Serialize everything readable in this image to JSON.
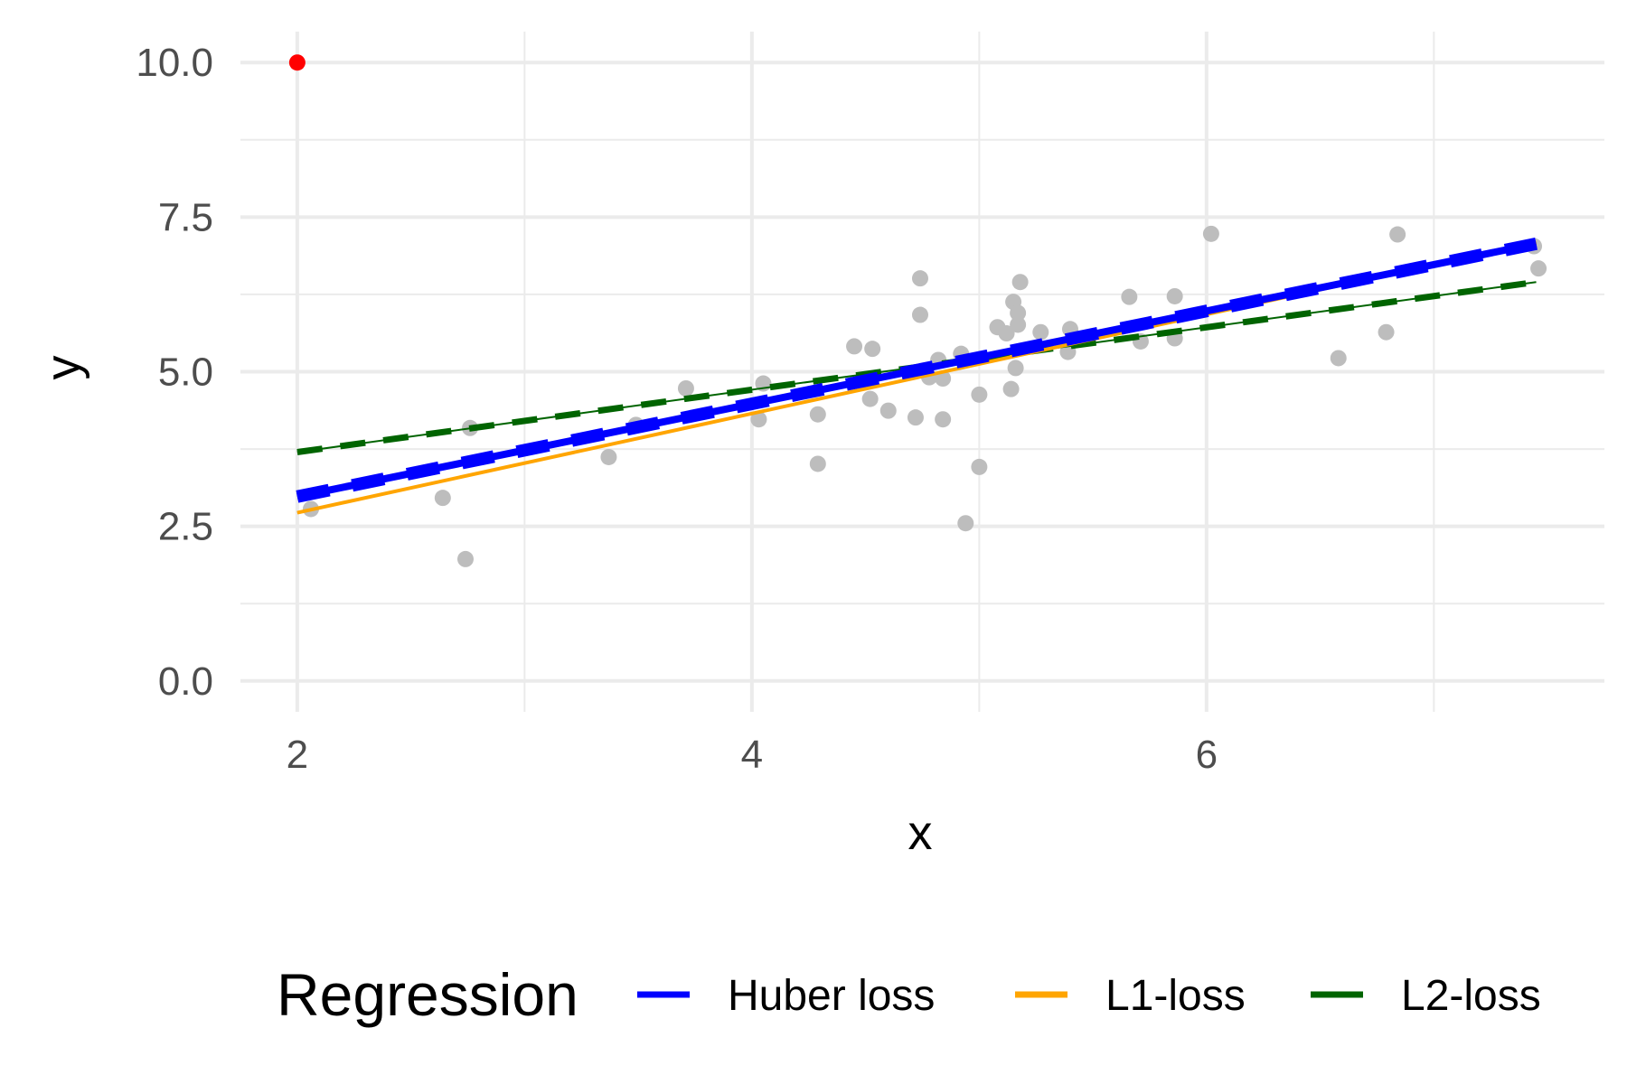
{
  "chart_data": {
    "type": "scatter",
    "title": "",
    "xlabel": "x",
    "ylabel": "y",
    "xlim": [
      1.75,
      7.75
    ],
    "ylim": [
      -0.5,
      10.5
    ],
    "x_ticks": [
      2,
      4,
      6
    ],
    "x_tick_labels": [
      "2",
      "4",
      "6"
    ],
    "x_minor_ticks": [
      3,
      5,
      7
    ],
    "y_ticks": [
      0,
      2.5,
      5,
      7.5,
      10
    ],
    "y_tick_labels": [
      "0.0",
      "2.5",
      "5.0",
      "7.5",
      "10.0"
    ],
    "y_minor_ticks": [
      1.25,
      3.75,
      6.25,
      8.75
    ],
    "grid": true,
    "points": {
      "color": "#bdbdbd",
      "x": [
        2.06,
        2.64,
        2.74,
        2.76,
        3.37,
        3.49,
        3.71,
        4.03,
        4.05,
        4.29,
        4.29,
        4.45,
        4.52,
        4.53,
        4.6,
        4.72,
        4.74,
        4.74,
        4.78,
        4.82,
        4.84,
        4.84,
        4.92,
        4.94,
        5.0,
        5.0,
        5.08,
        5.12,
        5.14,
        5.15,
        5.16,
        5.17,
        5.17,
        5.18,
        5.27,
        5.39,
        5.4,
        5.42,
        5.66,
        5.71,
        5.86,
        5.86,
        6.02,
        6.58,
        6.79,
        6.84,
        7.44,
        7.46
      ],
      "y": [
        2.78,
        2.96,
        1.97,
        4.09,
        3.62,
        4.14,
        4.73,
        4.23,
        4.81,
        4.31,
        3.51,
        5.41,
        4.56,
        5.37,
        4.37,
        4.26,
        6.51,
        5.92,
        4.91,
        5.19,
        4.23,
        4.89,
        5.29,
        2.55,
        4.63,
        3.46,
        5.72,
        5.62,
        4.72,
        6.13,
        5.06,
        5.76,
        5.95,
        6.45,
        5.64,
        5.32,
        5.69,
        5.55,
        6.21,
        5.49,
        6.22,
        5.54,
        7.23,
        5.22,
        5.64,
        7.22,
        7.03,
        6.67
      ]
    },
    "outlier": {
      "x": 2,
      "y": 10,
      "color": "#ff0000"
    },
    "legend": {
      "title": "Regression",
      "position": "bottom"
    },
    "series": [
      {
        "name": "Huber loss",
        "color": "#0000ff",
        "x": [
          2,
          7.45
        ],
        "y": [
          2.98,
          7.07
        ]
      },
      {
        "name": "L1-loss",
        "color": "#ffa500",
        "x": [
          2,
          7.45
        ],
        "y": [
          2.72,
          7.09
        ]
      },
      {
        "name": "L2-loss",
        "color": "#006400",
        "x": [
          2,
          7.45
        ],
        "y": [
          3.7,
          6.45
        ]
      }
    ]
  }
}
